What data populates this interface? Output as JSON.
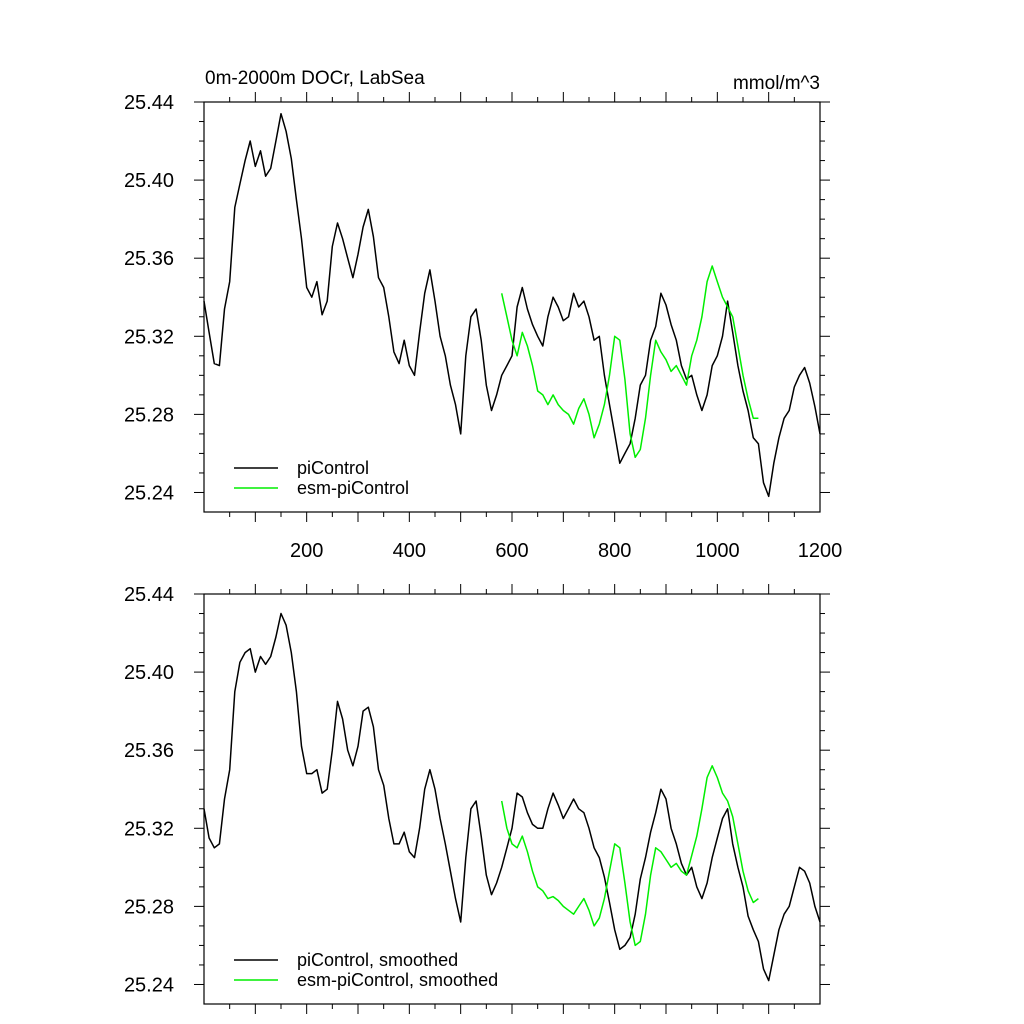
{
  "chart_data": [
    {
      "type": "line",
      "panel": "top",
      "title": "0m-2000m DOCr, LabSea",
      "units_label": "mmol/m^3",
      "xlim": [
        0,
        1200
      ],
      "ylim": [
        25.23,
        25.44
      ],
      "x_ticks": [
        200,
        400,
        600,
        800,
        1000,
        1200
      ],
      "x_tick_labels": [
        "200",
        "400",
        "600",
        "800",
        "1000",
        "1200"
      ],
      "y_ticks": [
        25.24,
        25.28,
        25.32,
        25.36,
        25.4,
        25.44
      ],
      "y_tick_labels": [
        "25.24",
        "25.28",
        "25.32",
        "25.36",
        "25.40",
        "25.44"
      ],
      "grid": false,
      "legend_position": "bottom-left",
      "series": [
        {
          "name": "piControl",
          "color": "#000000",
          "x": [
            0,
            10,
            20,
            30,
            40,
            50,
            60,
            70,
            80,
            90,
            100,
            110,
            120,
            130,
            140,
            150,
            160,
            170,
            180,
            190,
            200,
            210,
            220,
            230,
            240,
            250,
            260,
            270,
            280,
            290,
            300,
            310,
            320,
            330,
            340,
            350,
            360,
            370,
            380,
            390,
            400,
            410,
            420,
            430,
            440,
            450,
            460,
            470,
            480,
            490,
            500,
            510,
            520,
            530,
            540,
            550,
            560,
            570,
            580,
            590,
            600,
            610,
            620,
            630,
            640,
            650,
            660,
            670,
            680,
            690,
            700,
            710,
            720,
            730,
            740,
            750,
            760,
            770,
            780,
            790,
            800,
            810,
            820,
            830,
            840,
            850,
            860,
            870,
            880,
            890,
            900,
            910,
            920,
            930,
            940,
            950,
            960,
            970,
            980,
            990,
            1000,
            1010,
            1020,
            1030,
            1040,
            1050,
            1060,
            1070,
            1080,
            1090,
            1100,
            1110,
            1120,
            1130,
            1140,
            1150,
            1160,
            1170,
            1180,
            1190,
            1200
          ],
          "values": [
            25.338,
            25.322,
            25.306,
            25.305,
            25.334,
            25.348,
            25.386,
            25.398,
            25.41,
            25.42,
            25.407,
            25.415,
            25.402,
            25.406,
            25.42,
            25.434,
            25.425,
            25.411,
            25.39,
            25.37,
            25.345,
            25.34,
            25.348,
            25.331,
            25.338,
            25.366,
            25.378,
            25.37,
            25.36,
            25.35,
            25.362,
            25.376,
            25.385,
            25.371,
            25.35,
            25.345,
            25.33,
            25.312,
            25.306,
            25.318,
            25.305,
            25.3,
            25.322,
            25.342,
            25.354,
            25.338,
            25.32,
            25.31,
            25.295,
            25.285,
            25.27,
            25.31,
            25.33,
            25.334,
            25.318,
            25.295,
            25.282,
            25.29,
            25.3,
            25.305,
            25.31,
            25.335,
            25.345,
            25.334,
            25.326,
            25.32,
            25.315,
            25.33,
            25.34,
            25.335,
            25.328,
            25.33,
            25.342,
            25.335,
            25.338,
            25.33,
            25.318,
            25.32,
            25.3,
            25.285,
            25.27,
            25.255,
            25.26,
            25.265,
            25.278,
            25.295,
            25.3,
            25.318,
            25.325,
            25.342,
            25.336,
            25.326,
            25.318,
            25.305,
            25.298,
            25.3,
            25.29,
            25.282,
            25.29,
            25.305,
            25.31,
            25.32,
            25.338,
            25.322,
            25.305,
            25.292,
            25.282,
            25.268,
            25.265,
            25.245,
            25.238,
            25.255,
            25.268,
            25.278,
            25.282,
            25.294,
            25.3,
            25.304,
            25.296,
            25.284,
            25.27
          ]
        },
        {
          "name": "esm-piControl",
          "color": "#00ee00",
          "x": [
            580,
            590,
            600,
            610,
            620,
            630,
            640,
            650,
            660,
            670,
            680,
            690,
            700,
            710,
            720,
            730,
            740,
            750,
            760,
            770,
            780,
            790,
            800,
            810,
            820,
            830,
            840,
            850,
            860,
            870,
            880,
            890,
            900,
            910,
            920,
            930,
            940,
            950,
            960,
            970,
            980,
            990,
            1000,
            1010,
            1020,
            1030,
            1040,
            1050,
            1060,
            1070,
            1080
          ],
          "values": [
            25.342,
            25.33,
            25.318,
            25.31,
            25.322,
            25.315,
            25.305,
            25.292,
            25.29,
            25.285,
            25.29,
            25.285,
            25.282,
            25.28,
            25.275,
            25.283,
            25.288,
            25.28,
            25.268,
            25.275,
            25.285,
            25.3,
            25.32,
            25.318,
            25.298,
            25.27,
            25.258,
            25.262,
            25.278,
            25.3,
            25.318,
            25.312,
            25.308,
            25.302,
            25.305,
            25.3,
            25.295,
            25.31,
            25.318,
            25.33,
            25.348,
            25.356,
            25.348,
            25.34,
            25.335,
            25.33,
            25.315,
            25.3,
            25.288,
            25.278,
            25.278
          ]
        }
      ]
    },
    {
      "type": "line",
      "panel": "bottom",
      "xlim": [
        0,
        1200
      ],
      "ylim": [
        25.23,
        25.44
      ],
      "y_ticks": [
        25.24,
        25.28,
        25.32,
        25.36,
        25.4,
        25.44
      ],
      "y_tick_labels": [
        "25.24",
        "25.28",
        "25.32",
        "25.36",
        "25.40",
        "25.44"
      ],
      "grid": false,
      "legend_position": "bottom-left",
      "series": [
        {
          "name": "piControl, smoothed",
          "color": "#000000",
          "x": [
            0,
            10,
            20,
            30,
            40,
            50,
            60,
            70,
            80,
            90,
            100,
            110,
            120,
            130,
            140,
            150,
            160,
            170,
            180,
            190,
            200,
            210,
            220,
            230,
            240,
            250,
            260,
            270,
            280,
            290,
            300,
            310,
            320,
            330,
            340,
            350,
            360,
            370,
            380,
            390,
            400,
            410,
            420,
            430,
            440,
            450,
            460,
            470,
            480,
            490,
            500,
            510,
            520,
            530,
            540,
            550,
            560,
            570,
            580,
            590,
            600,
            610,
            620,
            630,
            640,
            650,
            660,
            670,
            680,
            690,
            700,
            710,
            720,
            730,
            740,
            750,
            760,
            770,
            780,
            790,
            800,
            810,
            820,
            830,
            840,
            850,
            860,
            870,
            880,
            890,
            900,
            910,
            920,
            930,
            940,
            950,
            960,
            970,
            980,
            990,
            1000,
            1010,
            1020,
            1030,
            1040,
            1050,
            1060,
            1070,
            1080,
            1090,
            1100,
            1110,
            1120,
            1130,
            1140,
            1150,
            1160,
            1170,
            1180,
            1190,
            1200
          ],
          "values": [
            25.33,
            25.315,
            25.31,
            25.312,
            25.335,
            25.35,
            25.39,
            25.405,
            25.41,
            25.412,
            25.4,
            25.408,
            25.404,
            25.408,
            25.418,
            25.43,
            25.424,
            25.41,
            25.39,
            25.362,
            25.348,
            25.348,
            25.35,
            25.338,
            25.34,
            25.36,
            25.385,
            25.376,
            25.36,
            25.352,
            25.362,
            25.38,
            25.382,
            25.372,
            25.35,
            25.342,
            25.325,
            25.312,
            25.312,
            25.318,
            25.308,
            25.305,
            25.32,
            25.34,
            25.35,
            25.34,
            25.325,
            25.312,
            25.298,
            25.284,
            25.272,
            25.305,
            25.33,
            25.334,
            25.316,
            25.296,
            25.286,
            25.292,
            25.3,
            25.31,
            25.32,
            25.338,
            25.336,
            25.328,
            25.322,
            25.32,
            25.32,
            25.33,
            25.338,
            25.332,
            25.325,
            25.33,
            25.335,
            25.33,
            25.328,
            25.32,
            25.31,
            25.305,
            25.295,
            25.282,
            25.268,
            25.258,
            25.26,
            25.264,
            25.276,
            25.294,
            25.305,
            25.318,
            25.328,
            25.34,
            25.335,
            25.32,
            25.312,
            25.302,
            25.296,
            25.3,
            25.29,
            25.284,
            25.292,
            25.305,
            25.315,
            25.325,
            25.33,
            25.312,
            25.3,
            25.29,
            25.275,
            25.268,
            25.262,
            25.248,
            25.242,
            25.255,
            25.268,
            25.276,
            25.28,
            25.29,
            25.3,
            25.298,
            25.292,
            25.28,
            25.272
          ]
        },
        {
          "name": "esm-piControl, smoothed",
          "color": "#00ee00",
          "x": [
            580,
            590,
            600,
            610,
            620,
            630,
            640,
            650,
            660,
            670,
            680,
            690,
            700,
            710,
            720,
            730,
            740,
            750,
            760,
            770,
            780,
            790,
            800,
            810,
            820,
            830,
            840,
            850,
            860,
            870,
            880,
            890,
            900,
            910,
            920,
            930,
            940,
            950,
            960,
            970,
            980,
            990,
            1000,
            1010,
            1020,
            1030,
            1040,
            1050,
            1060,
            1070,
            1080
          ],
          "values": [
            25.334,
            25.32,
            25.312,
            25.31,
            25.316,
            25.308,
            25.298,
            25.29,
            25.288,
            25.284,
            25.285,
            25.283,
            25.28,
            25.278,
            25.276,
            25.28,
            25.284,
            25.278,
            25.27,
            25.274,
            25.284,
            25.298,
            25.312,
            25.31,
            25.292,
            25.272,
            25.26,
            25.262,
            25.276,
            25.296,
            25.31,
            25.308,
            25.304,
            25.3,
            25.302,
            25.298,
            25.296,
            25.306,
            25.316,
            25.33,
            25.346,
            25.352,
            25.346,
            25.338,
            25.334,
            25.326,
            25.312,
            25.298,
            25.288,
            25.282,
            25.284
          ]
        }
      ]
    }
  ]
}
